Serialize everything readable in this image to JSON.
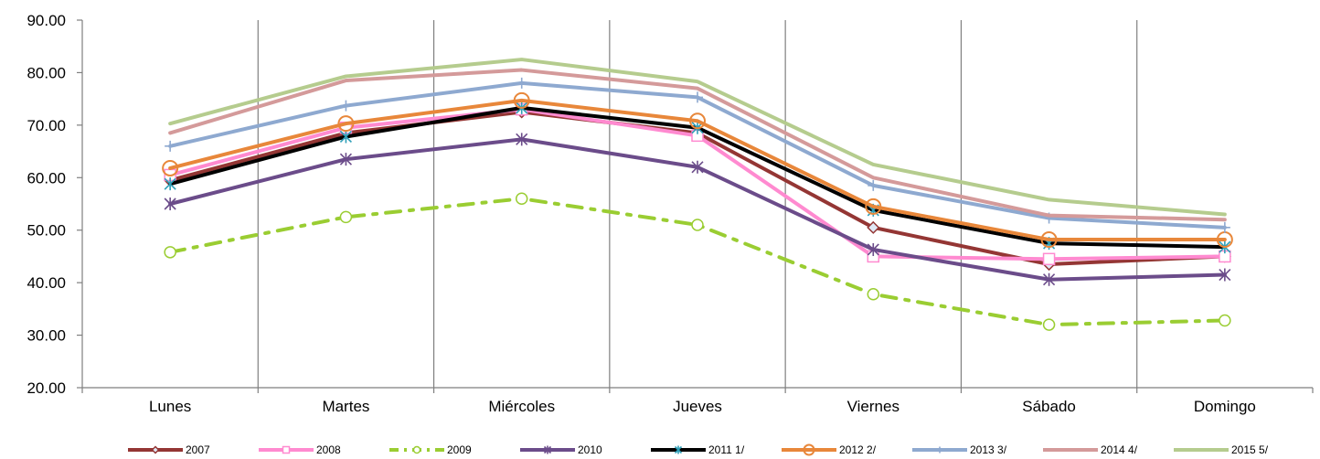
{
  "chart_data": {
    "type": "line",
    "title": "",
    "xlabel": "",
    "ylabel": "",
    "categories": [
      "Lunes",
      "Martes",
      "Miércoles",
      "Jueves",
      "Viernes",
      "Sábado",
      "Domingo"
    ],
    "ylim": [
      20,
      90
    ],
    "yticks": [
      "20.00",
      "30.00",
      "40.00",
      "50.00",
      "60.00",
      "70.00",
      "80.00",
      "90.00"
    ],
    "grid": "vertical",
    "legend": "bottom",
    "series": [
      {
        "name": "2007",
        "color": "#943634",
        "width": 4,
        "dash": "",
        "marker": "diamond",
        "values": [
          59.5,
          68.5,
          72.5,
          68.5,
          50.5,
          43.5,
          45.0
        ]
      },
      {
        "name": "2008",
        "color": "#FF8AD0",
        "width": 4,
        "dash": "",
        "marker": "square",
        "values": [
          60.5,
          69.5,
          73.0,
          68.0,
          45.0,
          44.5,
          45.0
        ]
      },
      {
        "name": "2009",
        "color": "#9ACD32",
        "width": 4,
        "dash": "16 10 4 10",
        "marker": "circle-open",
        "values": [
          45.8,
          52.5,
          56.0,
          51.0,
          37.8,
          32.0,
          32.8
        ]
      },
      {
        "name": "2010",
        "color": "#6B4C8A",
        "width": 4,
        "dash": "",
        "marker": "asterisk",
        "values": [
          55.0,
          63.5,
          67.3,
          62.0,
          46.3,
          40.6,
          41.5
        ]
      },
      {
        "name": "2011 1/",
        "color": "#000000",
        "width": 4,
        "dash": "",
        "marker": "star",
        "values": [
          58.8,
          67.8,
          73.3,
          69.5,
          53.8,
          47.5,
          46.8
        ]
      },
      {
        "name": "2012 2/",
        "color": "#E8873A",
        "width": 4,
        "dash": "",
        "marker": "circle",
        "values": [
          61.8,
          70.3,
          74.7,
          70.8,
          54.5,
          48.2,
          48.2
        ]
      },
      {
        "name": "2013 3/",
        "color": "#8EA9D0",
        "width": 4,
        "dash": "",
        "marker": "plus",
        "values": [
          66.0,
          73.7,
          78.0,
          75.3,
          58.5,
          52.3,
          50.5
        ]
      },
      {
        "name": "2014 4/",
        "color": "#D49A9A",
        "width": 4,
        "dash": "",
        "marker": "none",
        "values": [
          68.5,
          78.5,
          80.5,
          77.0,
          60.0,
          52.8,
          52.0
        ]
      },
      {
        "name": "2015 5/",
        "color": "#B5CC8E",
        "width": 4,
        "dash": "",
        "marker": "none",
        "values": [
          70.3,
          79.3,
          82.5,
          78.3,
          62.5,
          55.8,
          53.0
        ]
      }
    ]
  }
}
